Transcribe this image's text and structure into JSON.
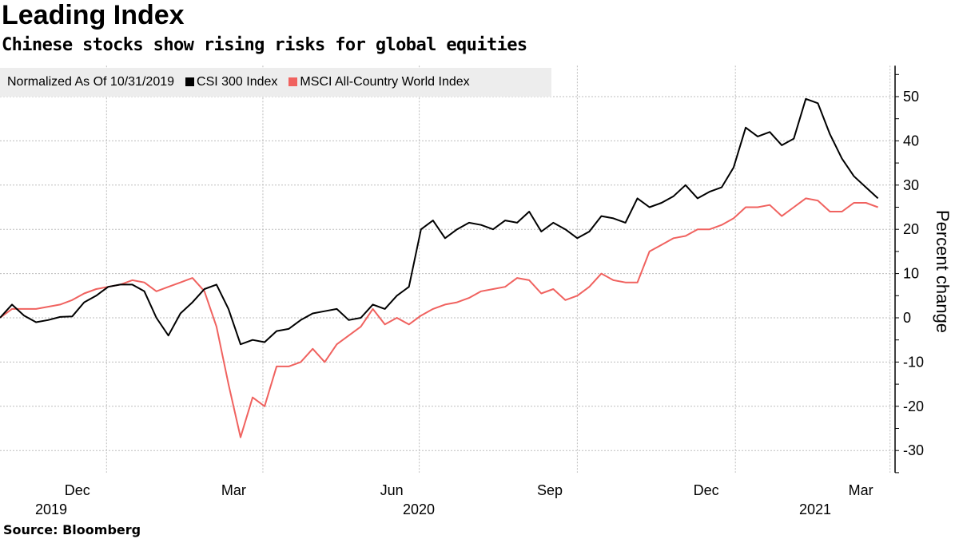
{
  "header": {
    "title": "Leading Index",
    "subtitle": "Chinese stocks show rising risks for global equities"
  },
  "legend": {
    "note": "Normalized As Of 10/31/2019",
    "items": [
      {
        "label": "CSI 300 Index",
        "color": "#000000"
      },
      {
        "label": "MSCI All-Country World Index",
        "color": "#f0625f"
      }
    ]
  },
  "footer": {
    "source": "Source: Bloomberg"
  },
  "chart_data": {
    "type": "line",
    "title": "Leading Index",
    "subtitle": "Chinese stocks show rising risks for global equities",
    "ylabel": "Percent change",
    "ylim": [
      -35,
      57
    ],
    "yticks": [
      50,
      40,
      30,
      20,
      10,
      0,
      -10,
      -20,
      -30
    ],
    "y_axis_side": "right",
    "grid": true,
    "legend_placement": "top-left",
    "xlim": [
      "2019-10-31",
      "2021-03-31"
    ],
    "xtick_labels": [
      {
        "month": "Dec",
        "year": "2019",
        "date": "2019-12-15"
      },
      {
        "month": "Mar",
        "date": "2020-03-15"
      },
      {
        "month": "Jun",
        "year": "2020",
        "date": "2020-06-15"
      },
      {
        "month": "Sep",
        "date": "2020-09-15"
      },
      {
        "month": "Dec",
        "date": "2020-12-15"
      },
      {
        "month": "Mar",
        "year": "2021",
        "date": "2021-03-15"
      }
    ],
    "x": [
      "2019-10-31",
      "2019-11-07",
      "2019-11-14",
      "2019-11-21",
      "2019-11-28",
      "2019-12-05",
      "2019-12-12",
      "2019-12-19",
      "2019-12-26",
      "2020-01-02",
      "2020-01-09",
      "2020-01-16",
      "2020-01-23",
      "2020-01-30",
      "2020-02-06",
      "2020-02-13",
      "2020-02-20",
      "2020-02-27",
      "2020-03-05",
      "2020-03-12",
      "2020-03-19",
      "2020-03-26",
      "2020-04-02",
      "2020-04-09",
      "2020-04-16",
      "2020-04-23",
      "2020-04-30",
      "2020-05-07",
      "2020-05-14",
      "2020-05-21",
      "2020-05-28",
      "2020-06-04",
      "2020-06-11",
      "2020-06-18",
      "2020-06-25",
      "2020-07-02",
      "2020-07-09",
      "2020-07-16",
      "2020-07-23",
      "2020-07-30",
      "2020-08-06",
      "2020-08-13",
      "2020-08-20",
      "2020-08-27",
      "2020-09-03",
      "2020-09-10",
      "2020-09-17",
      "2020-09-24",
      "2020-10-01",
      "2020-10-08",
      "2020-10-15",
      "2020-10-22",
      "2020-10-29",
      "2020-11-05",
      "2020-11-12",
      "2020-11-19",
      "2020-11-26",
      "2020-12-03",
      "2020-12-10",
      "2020-12-17",
      "2020-12-24",
      "2020-12-31",
      "2021-01-07",
      "2021-01-14",
      "2021-01-21",
      "2021-01-28",
      "2021-02-04",
      "2021-02-11",
      "2021-02-18",
      "2021-02-25",
      "2021-03-04",
      "2021-03-11",
      "2021-03-18",
      "2021-03-25"
    ],
    "series": [
      {
        "name": "CSI 300 Index",
        "color": "#000000",
        "values": [
          0,
          3,
          0.5,
          -1,
          -0.5,
          0.2,
          0.3,
          3.5,
          5,
          7,
          7.5,
          7.5,
          6,
          0,
          -4,
          1,
          3.5,
          6.5,
          7.5,
          2,
          -6,
          -5,
          -5.5,
          -3,
          -2.5,
          -0.5,
          1,
          1.5,
          2,
          -0.5,
          0,
          3,
          2,
          5,
          7,
          20,
          22,
          18,
          20,
          21.5,
          21,
          20,
          22,
          21.5,
          24,
          19.5,
          21.5,
          20,
          18,
          19.5,
          23,
          22.5,
          21.5,
          27,
          25,
          26,
          27.5,
          30,
          27,
          28.5,
          29.5,
          34,
          43,
          41,
          42,
          39,
          40.5,
          49.5,
          48.5,
          41.5,
          36,
          32,
          29.5,
          27
        ]
      },
      {
        "name": "MSCI All-Country World Index",
        "color": "#f0625f",
        "values": [
          0,
          2,
          2,
          2,
          2.5,
          3,
          4,
          5.5,
          6.5,
          7,
          7.5,
          8.5,
          8,
          6,
          7,
          8,
          9,
          6,
          -2,
          -15,
          -27,
          -18,
          -20,
          -11,
          -11,
          -10,
          -7,
          -10,
          -6,
          -4,
          -2,
          2,
          -1.5,
          0,
          -1.5,
          0.5,
          2,
          3,
          3.5,
          4.5,
          6,
          6.5,
          7,
          9,
          8.5,
          5.5,
          6.5,
          4,
          5,
          7,
          10,
          8.5,
          8,
          8,
          15,
          16.5,
          18,
          18.5,
          20,
          20,
          21,
          22.5,
          25,
          25,
          25.5,
          23,
          25,
          27,
          26.5,
          24,
          24,
          26,
          26,
          25
        ]
      }
    ]
  }
}
